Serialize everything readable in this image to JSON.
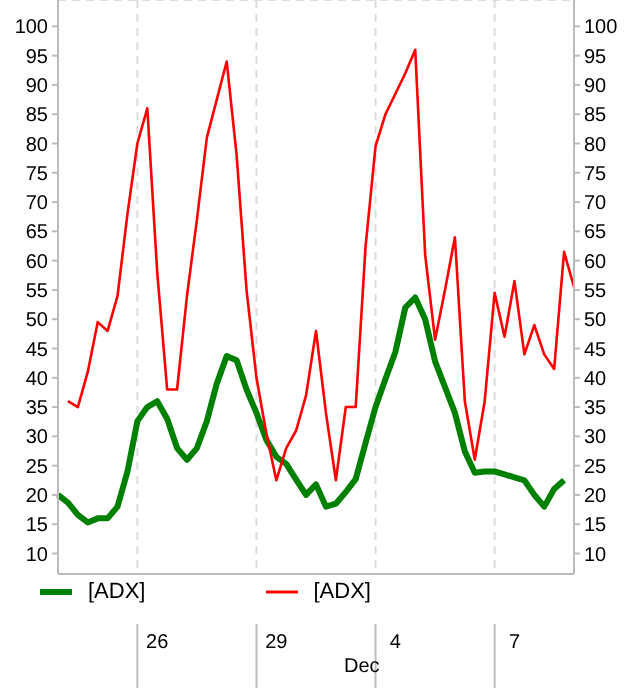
{
  "chart_data": {
    "type": "line",
    "categories": [
      null,
      null,
      null,
      null,
      null,
      null,
      null,
      null,
      null,
      null,
      "26",
      null,
      null,
      null,
      null,
      null,
      null,
      null,
      null,
      null,
      null,
      null,
      "29",
      null,
      null,
      null,
      null,
      null,
      null,
      null,
      null,
      null,
      null,
      null,
      "4",
      null,
      null,
      null,
      null,
      null,
      null,
      null,
      null,
      null,
      null,
      null,
      "7",
      null,
      null,
      null,
      null,
      null,
      null
    ],
    "ylim": [
      6.5,
      104.5
    ],
    "yticks": [
      10,
      15,
      20,
      25,
      30,
      35,
      40,
      45,
      50,
      55,
      60,
      65,
      70,
      75,
      80,
      85,
      90,
      95,
      100
    ],
    "y2lim": [
      6.5,
      104.5
    ],
    "y2ticks": [
      10,
      15,
      20,
      25,
      30,
      35,
      40,
      45,
      50,
      55,
      60,
      65,
      70,
      75,
      80,
      85,
      90,
      95,
      100
    ],
    "grid": true,
    "legend": "bottom",
    "line_style": "solid",
    "annotations": [
      "Dec"
    ],
    "series": [
      {
        "name": "[ADX]",
        "color": "#008000",
        "values": [
          20,
          18.7,
          16.6,
          15.3,
          16,
          16,
          18,
          24,
          32.6,
          35,
          36,
          33,
          28,
          26,
          28,
          32.6,
          39,
          43.7,
          43,
          38,
          34,
          29.4,
          26.5,
          25.3,
          22.6,
          20,
          21.8,
          18,
          18.5,
          20.5,
          22.7,
          28.9,
          35,
          39.8,
          44.4,
          52,
          53.7,
          50,
          42.8,
          38.4,
          34,
          27.4,
          23.8,
          24,
          24,
          23.5,
          23,
          22.5,
          20,
          18,
          21,
          22.5,
          null
        ]
      },
      {
        "name": "[ADX]",
        "color": "#ff0000",
        "values": [
          null,
          36,
          35,
          41,
          49.5,
          48,
          54,
          68,
          80,
          86,
          58,
          38,
          38,
          54,
          67,
          81,
          87.5,
          94,
          78,
          55,
          40,
          30.5,
          22.5,
          28,
          31,
          37,
          48,
          34,
          22.5,
          35,
          35,
          62.5,
          79.5,
          85,
          88.5,
          92,
          96,
          61,
          46.5,
          55,
          64,
          36,
          26,
          36,
          54.5,
          47,
          56.5,
          44,
          49,
          44,
          41.5,
          61.5,
          55.5
        ]
      }
    ]
  }
}
